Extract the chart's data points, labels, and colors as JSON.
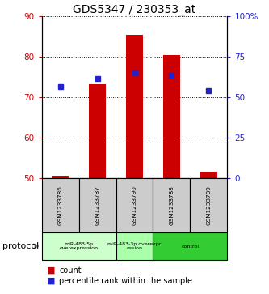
{
  "title": "GDS5347 / 230353_at",
  "samples": [
    "GSM1233786",
    "GSM1233787",
    "GSM1233790",
    "GSM1233788",
    "GSM1233789"
  ],
  "bar_values": [
    50.5,
    73.2,
    85.3,
    80.3,
    51.5
  ],
  "percentile_values": [
    72.5,
    74.6,
    76.0,
    75.4,
    71.5
  ],
  "ylim_left": [
    50,
    90
  ],
  "ylim_right": [
    0,
    100
  ],
  "yticks_left": [
    50,
    60,
    70,
    80,
    90
  ],
  "yticks_right": [
    0,
    25,
    50,
    75,
    100
  ],
  "ytick_labels_right": [
    "0",
    "25",
    "50",
    "75",
    "100%"
  ],
  "bar_color": "#cc0000",
  "marker_color": "#2222cc",
  "bar_bottom": 50,
  "bar_width": 0.45,
  "group_configs": [
    {
      "indices": [
        0,
        1
      ],
      "label": "miR-483-5p\noverexpression",
      "color": "#ccffcc"
    },
    {
      "indices": [
        2
      ],
      "label": "miR-483-3p overexpr\nession",
      "color": "#aaffaa"
    },
    {
      "indices": [
        3,
        4
      ],
      "label": "control",
      "color": "#33cc33"
    }
  ],
  "protocol_label": "protocol",
  "legend_count_label": "count",
  "legend_percentile_label": "percentile rank within the sample",
  "axis_color_left": "#cc0000",
  "axis_color_right": "#2222cc",
  "sample_box_color": "#cccccc",
  "tick_labelsize": 7.5,
  "title_fontsize": 10
}
